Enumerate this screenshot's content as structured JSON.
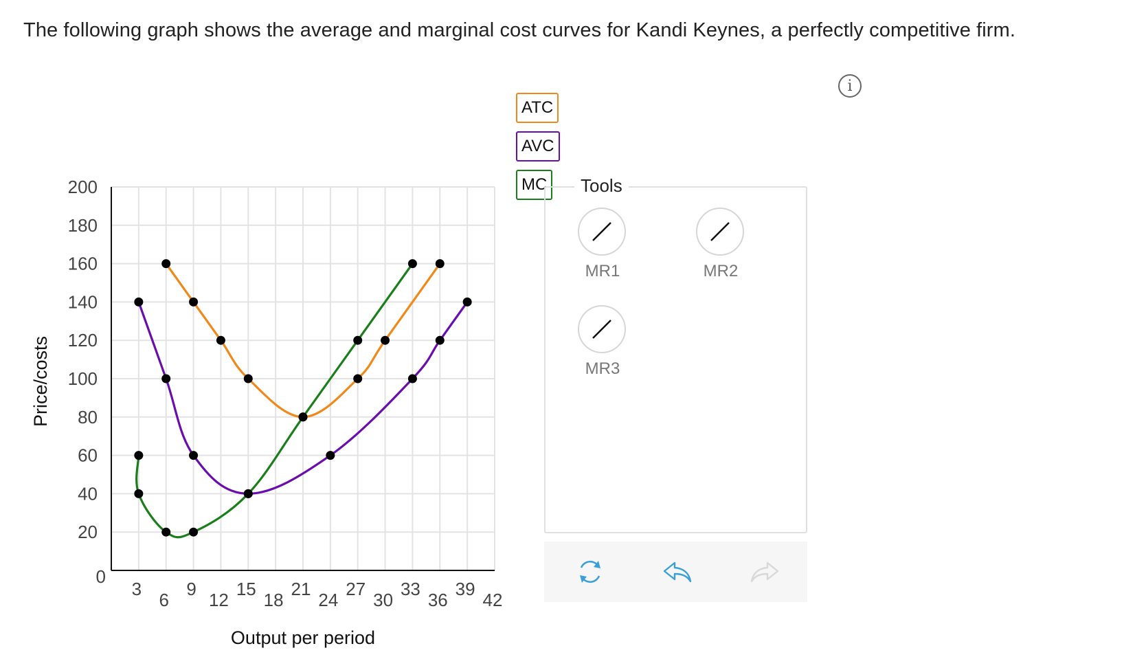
{
  "question": {
    "prompt": "The following graph shows the average and marginal cost curves for Kandi Keynes, a perfectly competitive firm."
  },
  "toolbar": {
    "info_icon": "info-icon",
    "info_symbol": "i"
  },
  "legend": [
    {
      "label": "ATC",
      "color": "#f0891b"
    },
    {
      "label": "AVC",
      "color": "#6a0dad"
    },
    {
      "label": "MC",
      "color": "#1a7f1a"
    }
  ],
  "tools": {
    "title": "Tools",
    "items": [
      {
        "label": "MR1",
        "icon": "line-tool-icon"
      },
      {
        "label": "MR2",
        "icon": "line-tool-icon"
      },
      {
        "label": "MR3",
        "icon": "line-tool-icon"
      }
    ]
  },
  "actions": [
    {
      "name": "reset",
      "icon": "refresh-icon",
      "color": "#3ba0d8",
      "enabled": true
    },
    {
      "name": "undo",
      "icon": "undo-icon",
      "color": "#3ba0d8",
      "enabled": true
    },
    {
      "name": "redo",
      "icon": "redo-icon",
      "color": "#d8d8d8",
      "enabled": false
    }
  ],
  "chart_data": {
    "type": "line",
    "title": "",
    "xlabel": "Output per period",
    "ylabel": "Price/costs",
    "xlim": [
      0,
      42
    ],
    "ylim": [
      0,
      200
    ],
    "x_ticks": [
      3,
      6,
      9,
      12,
      15,
      18,
      21,
      24,
      27,
      30,
      33,
      36,
      39,
      42
    ],
    "x_tick_labels": [
      "3",
      "6",
      "9",
      "12",
      "15",
      "18",
      "21",
      "24",
      "27",
      "30",
      "33",
      "36",
      "39",
      "42"
    ],
    "y_ticks": [
      0,
      20,
      40,
      60,
      80,
      100,
      120,
      140,
      160,
      180,
      200
    ],
    "y_tick_labels": [
      "0",
      "20",
      "40",
      "60",
      "80",
      "100",
      "120",
      "140",
      "160",
      "180",
      "200"
    ],
    "grid": true,
    "series": [
      {
        "name": "ATC",
        "color": "#f0891b",
        "points": [
          [
            6,
            160
          ],
          [
            9,
            140
          ],
          [
            12,
            120
          ],
          [
            15,
            100
          ],
          [
            21,
            80
          ],
          [
            27,
            100
          ],
          [
            30,
            120
          ],
          [
            36,
            160
          ]
        ]
      },
      {
        "name": "AVC",
        "color": "#6a0dad",
        "points": [
          [
            3,
            140
          ],
          [
            6,
            100
          ],
          [
            9,
            60
          ],
          [
            15,
            40
          ],
          [
            24,
            60
          ],
          [
            33,
            100
          ],
          [
            36,
            120
          ],
          [
            39,
            140
          ]
        ]
      },
      {
        "name": "MC",
        "color": "#1a7f1a",
        "points": [
          [
            3,
            60
          ],
          [
            3,
            40
          ],
          [
            6,
            20
          ],
          [
            9,
            20
          ],
          [
            15,
            40
          ],
          [
            21,
            80
          ],
          [
            27,
            120
          ],
          [
            33,
            160
          ]
        ]
      }
    ]
  }
}
